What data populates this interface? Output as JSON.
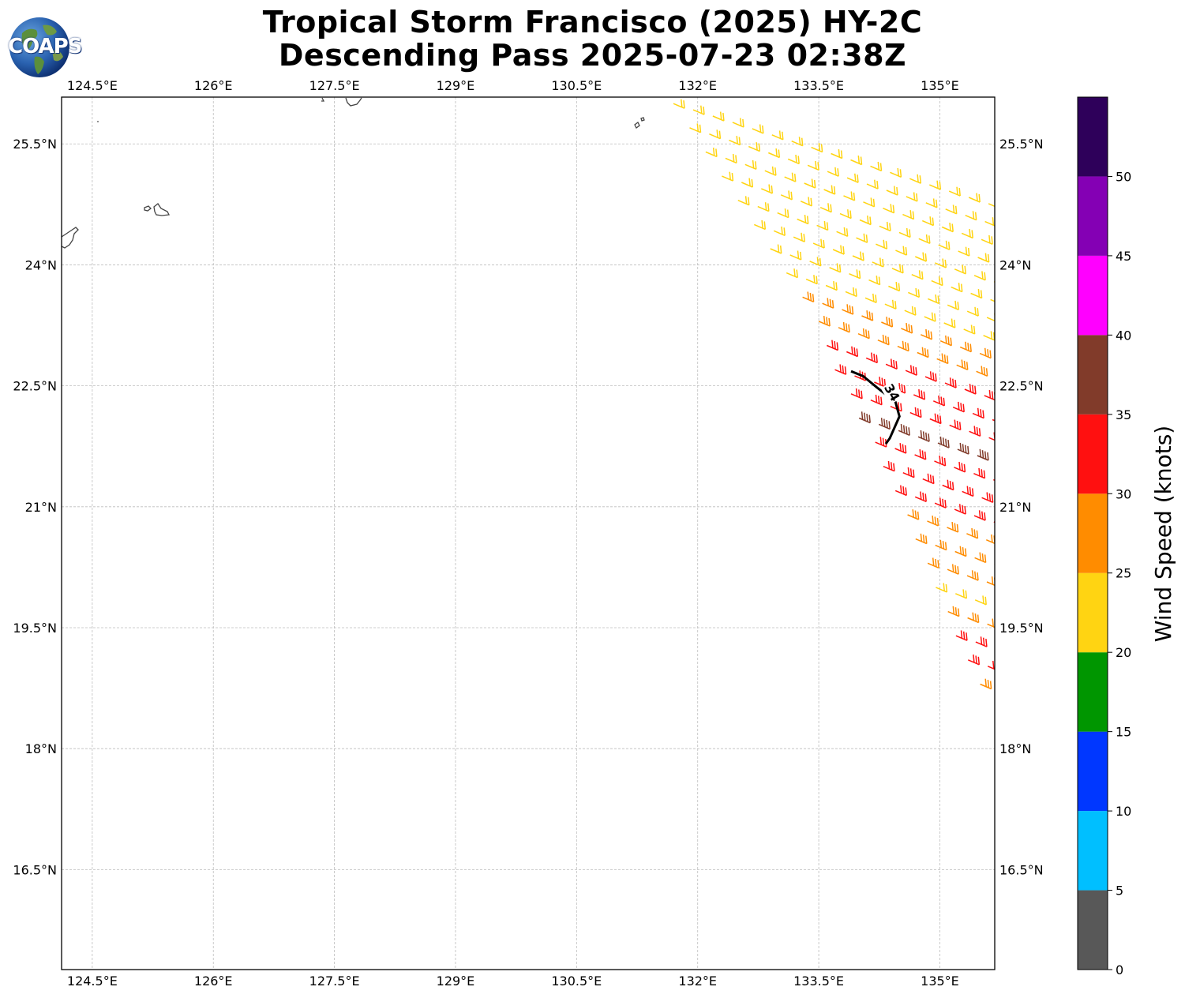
{
  "title_line1": "Tropical Storm Francisco (2025) HY-2C",
  "title_line2": "Descending Pass 2025-07-23 02:38Z",
  "logo_text": "COAPS",
  "map": {
    "lon_min": 124.12,
    "lon_max": 135.68,
    "lat_min": 15.26,
    "lat_max": 26.08,
    "lon_ticks": [
      124.5,
      126,
      127.5,
      129,
      130.5,
      132,
      133.5,
      135
    ],
    "lon_tick_labels": [
      "124.5°E",
      "126°E",
      "127.5°E",
      "129°E",
      "130.5°E",
      "132°E",
      "133.5°E",
      "135°E"
    ],
    "lat_ticks": [
      16.5,
      18,
      19.5,
      21,
      22.5,
      24,
      25.5
    ],
    "lat_tick_labels": [
      "16.5°N",
      "18°N",
      "19.5°N",
      "21°N",
      "22.5°N",
      "24°N",
      "25.5°N"
    ],
    "grid": true
  },
  "contour": {
    "label": "34",
    "points": [
      [
        133.9,
        22.68
      ],
      [
        134.05,
        22.62
      ],
      [
        134.22,
        22.48
      ],
      [
        134.45,
        22.3
      ],
      [
        134.5,
        22.12
      ],
      [
        134.38,
        21.85
      ],
      [
        134.33,
        21.78
      ]
    ]
  },
  "colorbar": {
    "label": "Wind Speed (knots)",
    "bounds": [
      0,
      5,
      10,
      15,
      20,
      25,
      30,
      35,
      40,
      45,
      50,
      55
    ],
    "tick_labels": [
      "0",
      "5",
      "10",
      "15",
      "20",
      "25",
      "30",
      "35",
      "40",
      "45",
      "50"
    ],
    "colors": [
      "#585858",
      "#00bfff",
      "#0037ff",
      "#009600",
      "#ffd412",
      "#ff8c00",
      "#ff1010",
      "#813b2a",
      "#ff00ff",
      "#8400b4",
      "#2e005a"
    ]
  },
  "chart_data": {
    "type": "scatter",
    "title": "Tropical Storm Francisco (2025) HY-2C Descending Pass 2025-07-23 02:38Z",
    "xlabel": "",
    "ylabel": "",
    "xlim": [
      124.12,
      135.68
    ],
    "ylim": [
      15.26,
      26.08
    ],
    "colorbar_label": "Wind Speed (knots)",
    "wind_swath": [
      {
        "lat": 26.0,
        "lon_start": 131.7,
        "lon_end": 135.68,
        "speed": 22
      },
      {
        "lat": 25.7,
        "lon_start": 131.9,
        "lon_end": 135.68,
        "speed": 22
      },
      {
        "lat": 25.4,
        "lon_start": 132.1,
        "lon_end": 135.68,
        "speed": 22
      },
      {
        "lat": 25.1,
        "lon_start": 132.3,
        "lon_end": 135.68,
        "speed": 22
      },
      {
        "lat": 24.8,
        "lon_start": 132.5,
        "lon_end": 135.68,
        "speed": 22
      },
      {
        "lat": 24.5,
        "lon_start": 132.7,
        "lon_end": 135.68,
        "speed": 22
      },
      {
        "lat": 24.2,
        "lon_start": 132.9,
        "lon_end": 135.68,
        "speed": 22
      },
      {
        "lat": 23.9,
        "lon_start": 133.1,
        "lon_end": 135.68,
        "speed": 23
      },
      {
        "lat": 23.6,
        "lon_start": 133.3,
        "lon_end": 135.68,
        "speed": 27
      },
      {
        "lat": 23.3,
        "lon_start": 133.5,
        "lon_end": 135.68,
        "speed": 28
      },
      {
        "lat": 23.0,
        "lon_start": 133.6,
        "lon_end": 135.68,
        "speed": 32
      },
      {
        "lat": 22.7,
        "lon_start": 133.7,
        "lon_end": 135.68,
        "speed": 33
      },
      {
        "lat": 22.4,
        "lon_start": 133.9,
        "lon_end": 135.68,
        "speed": 34
      },
      {
        "lat": 22.1,
        "lon_start": 134.0,
        "lon_end": 135.68,
        "speed": 35
      },
      {
        "lat": 21.8,
        "lon_start": 134.2,
        "lon_end": 135.68,
        "speed": 33
      },
      {
        "lat": 21.5,
        "lon_start": 134.3,
        "lon_end": 135.68,
        "speed": 32
      },
      {
        "lat": 21.2,
        "lon_start": 134.45,
        "lon_end": 135.68,
        "speed": 30
      },
      {
        "lat": 20.9,
        "lon_start": 134.6,
        "lon_end": 135.68,
        "speed": 28
      },
      {
        "lat": 20.6,
        "lon_start": 134.7,
        "lon_end": 135.68,
        "speed": 27
      },
      {
        "lat": 20.3,
        "lon_start": 134.85,
        "lon_end": 135.68,
        "speed": 25
      },
      {
        "lat": 20.0,
        "lon_start": 134.95,
        "lon_end": 135.68,
        "speed": 24
      },
      {
        "lat": 19.7,
        "lon_start": 135.1,
        "lon_end": 135.68,
        "speed": 26
      },
      {
        "lat": 19.4,
        "lon_start": 135.2,
        "lon_end": 135.68,
        "speed": 30
      },
      {
        "lat": 19.1,
        "lon_start": 135.35,
        "lon_end": 135.68,
        "speed": 32
      },
      {
        "lat": 18.8,
        "lon_start": 135.5,
        "lon_end": 135.68,
        "speed": 28
      }
    ]
  }
}
